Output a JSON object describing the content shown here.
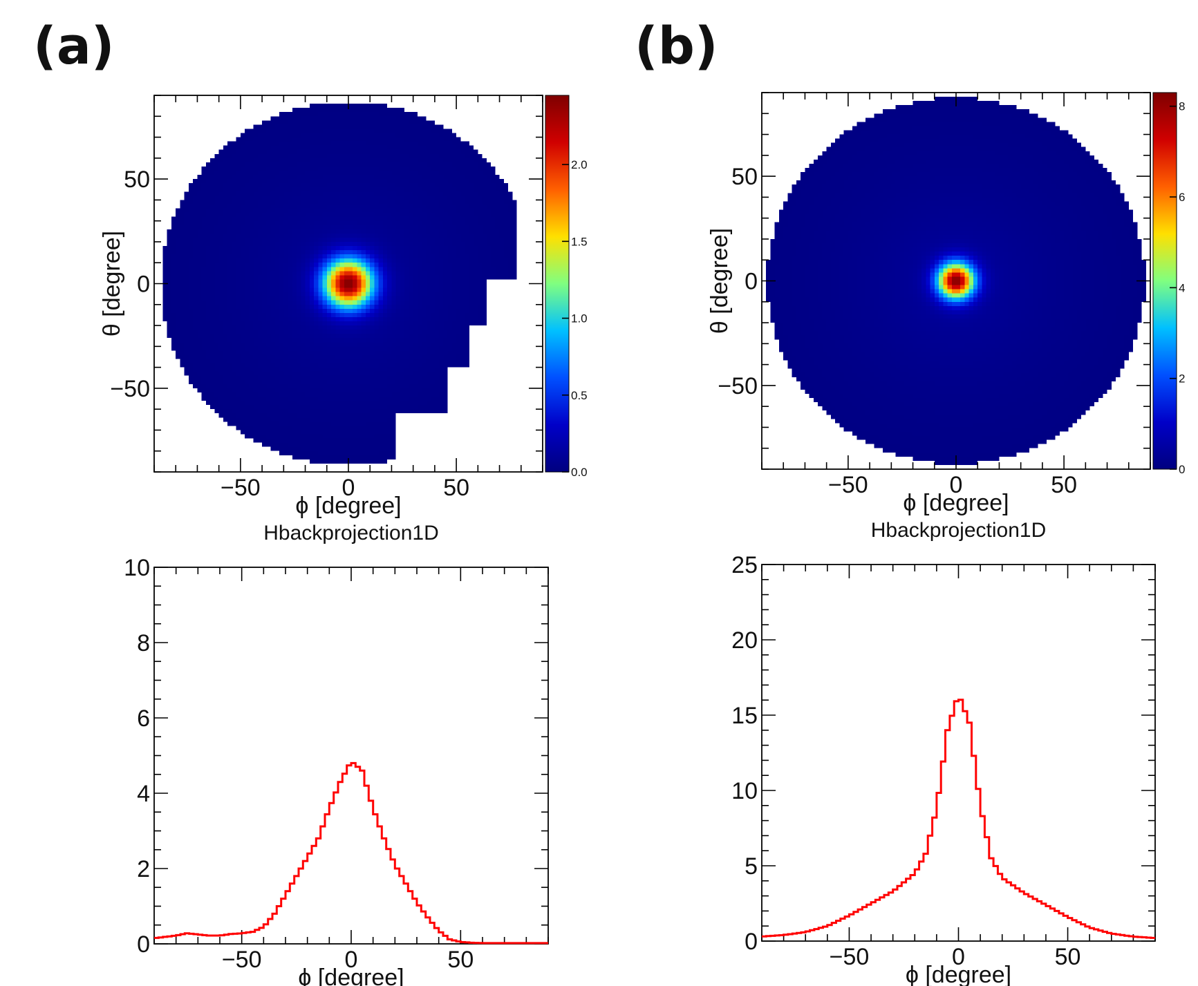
{
  "panels": [
    {
      "label": "(a)"
    },
    {
      "label": "(b)"
    }
  ],
  "colors": {
    "colormap": [
      "#00007f",
      "#0000c8",
      "#0050ff",
      "#00c0ff",
      "#80ff80",
      "#ffe000",
      "#ff6000",
      "#d00000",
      "#7f0000"
    ],
    "hist_line": "#ff0000",
    "frame": "#000000"
  },
  "chart_data": [
    {
      "id": "a-map",
      "type": "heatmap",
      "xlabel": "ϕ [degree]",
      "ylabel": "θ [degree]",
      "xlim": [
        -90,
        90
      ],
      "ylim": [
        -90,
        90
      ],
      "xticks": [
        -50,
        0,
        50
      ],
      "xtick_labels": [
        "−50",
        "0",
        "50"
      ],
      "yticks": [
        -50,
        0,
        50
      ],
      "ytick_labels": [
        "−50",
        "0",
        "50"
      ],
      "colorbar": {
        "min": 0.0,
        "max": 2.45,
        "ticks": [
          0.0,
          0.5,
          1.0,
          1.5,
          2.0
        ],
        "tick_labels": [
          "0.0",
          "0.5",
          "1.0",
          "1.5",
          "2.0"
        ]
      },
      "peak": {
        "x": 0,
        "y": 0,
        "value": 2.45
      },
      "radius_deg": 88,
      "cutout": "missing region at lower-right (ϕ > 20, θ < -30) and right edge (ϕ > 65)",
      "bins": 90
    },
    {
      "id": "a-hist",
      "type": "line",
      "title": "Hbackprojection1D",
      "xlabel": "ϕ [degree]",
      "ylabel": "",
      "xlim": [
        -90,
        90
      ],
      "ylim": [
        0,
        10
      ],
      "xticks": [
        -50,
        0,
        50
      ],
      "xtick_labels": [
        "−50",
        "0",
        "50"
      ],
      "yticks": [
        0,
        2,
        4,
        6,
        8,
        10
      ],
      "ytick_labels": [
        "0",
        "2",
        "4",
        "6",
        "8",
        "10"
      ],
      "series": [
        {
          "x": [
            -90,
            -80,
            -75,
            -70,
            -65,
            -60,
            -55,
            -50,
            -45,
            -40,
            -35,
            -30,
            -25,
            -20,
            -15,
            -10,
            -5,
            0,
            5,
            10,
            15,
            20,
            25,
            30,
            35,
            40,
            45,
            50,
            55,
            60,
            70,
            80,
            90
          ],
          "y": [
            0.15,
            0.22,
            0.28,
            0.25,
            0.22,
            0.22,
            0.26,
            0.28,
            0.32,
            0.45,
            0.8,
            1.3,
            1.8,
            2.3,
            2.8,
            3.6,
            4.3,
            4.85,
            4.6,
            3.6,
            2.8,
            2.1,
            1.6,
            1.1,
            0.7,
            0.35,
            0.12,
            0.05,
            0.03,
            0.02,
            0.02,
            0.02,
            0.02
          ]
        }
      ]
    },
    {
      "id": "b-map",
      "type": "heatmap",
      "xlabel": "ϕ [degree]",
      "ylabel": "θ [degree]",
      "xlim": [
        -90,
        90
      ],
      "ylim": [
        -90,
        90
      ],
      "xticks": [
        -50,
        0,
        50
      ],
      "xtick_labels": [
        "−50",
        "0",
        "50"
      ],
      "yticks": [
        -50,
        0,
        50
      ],
      "ytick_labels": [
        "−50",
        "0",
        "50"
      ],
      "colorbar": {
        "min": 0,
        "max": 8.3,
        "ticks": [
          0,
          2,
          4,
          6,
          8
        ],
        "tick_labels": [
          "0",
          "2",
          "4",
          "6",
          "8"
        ]
      },
      "peak": {
        "x": 0,
        "y": 0,
        "value": 8.3
      },
      "radius_deg": 88,
      "bins": 90
    },
    {
      "id": "b-hist",
      "type": "line",
      "title": "Hbackprojection1D",
      "xlabel": "ϕ [degree]",
      "ylabel": "",
      "xlim": [
        -90,
        90
      ],
      "ylim": [
        0,
        25
      ],
      "xticks": [
        -50,
        0,
        50
      ],
      "xtick_labels": [
        "−50",
        "0",
        "50"
      ],
      "yticks": [
        0,
        5,
        10,
        15,
        20,
        25
      ],
      "ytick_labels": [
        "0",
        "5",
        "10",
        "15",
        "20",
        "25"
      ],
      "series": [
        {
          "x": [
            -90,
            -80,
            -70,
            -60,
            -50,
            -40,
            -30,
            -20,
            -15,
            -10,
            -5,
            0,
            5,
            10,
            15,
            20,
            30,
            40,
            50,
            60,
            70,
            80,
            90
          ],
          "y": [
            0.3,
            0.4,
            0.6,
            1.0,
            1.7,
            2.5,
            3.3,
            4.5,
            5.8,
            8.8,
            14.0,
            16.4,
            14.5,
            9.0,
            5.5,
            4.2,
            3.2,
            2.4,
            1.6,
            0.9,
            0.5,
            0.3,
            0.2
          ]
        }
      ]
    }
  ]
}
